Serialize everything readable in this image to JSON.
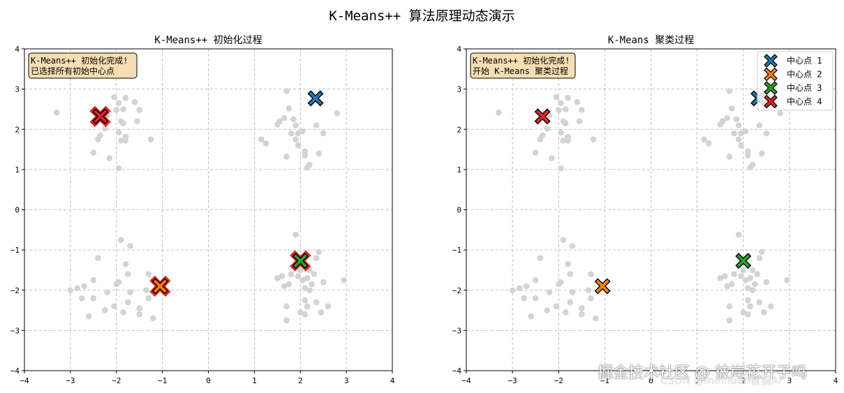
{
  "figure": {
    "suptitle": "K-Means++ 算法原理动态演示"
  },
  "watermark": {
    "text": "掘金技术社区 @ 彼岸花开子吗",
    "sub": "CSDN @minhuan智猫AI"
  },
  "colors": {
    "points": "#d3d3d3",
    "grid": "#b0b0b0",
    "annotation_bg": "#f5deb3",
    "outline_red": "#d62728"
  },
  "chart_data": [
    {
      "type": "scatter",
      "title": "K-Means++ 初始化过程",
      "xlim": [
        -4,
        4
      ],
      "ylim": [
        -4,
        4
      ],
      "xticks": [
        -4,
        -3,
        -2,
        -1,
        0,
        1,
        2,
        3,
        4
      ],
      "yticks": [
        -4,
        -3,
        -2,
        -1,
        0,
        1,
        2,
        3,
        4
      ],
      "grid": true,
      "annotation": [
        "K-Means++ 初始化完成!",
        "已选择所有初始中心点"
      ],
      "points": [
        [
          -3.3,
          2.42
        ],
        [
          -2.5,
          1.42
        ],
        [
          -2.4,
          1.75
        ],
        [
          -2.35,
          1.85
        ],
        [
          -2.25,
          2.02
        ],
        [
          -2.2,
          2.35
        ],
        [
          -2.15,
          1.28
        ],
        [
          -2.05,
          2.8
        ],
        [
          -2.0,
          2.48
        ],
        [
          -1.95,
          2.65
        ],
        [
          -1.95,
          1.92
        ],
        [
          -1.9,
          2.2
        ],
        [
          -1.9,
          1.72
        ],
        [
          -1.85,
          2.5
        ],
        [
          -1.85,
          2.15
        ],
        [
          -1.8,
          2.78
        ],
        [
          -1.8,
          1.82
        ],
        [
          -1.8,
          1.72
        ],
        [
          -1.6,
          2.68
        ],
        [
          -1.55,
          2.2
        ],
        [
          -1.5,
          2.48
        ],
        [
          -1.25,
          1.75
        ],
        [
          -1.95,
          1.03
        ],
        [
          1.7,
          2.95
        ],
        [
          1.75,
          2.52
        ],
        [
          1.65,
          2.28
        ],
        [
          1.5,
          2.12
        ],
        [
          1.55,
          2.2
        ],
        [
          1.9,
          2.1
        ],
        [
          1.85,
          2.25
        ],
        [
          1.95,
          1.9
        ],
        [
          1.9,
          1.75
        ],
        [
          2.05,
          1.95
        ],
        [
          1.8,
          1.9
        ],
        [
          1.95,
          1.6
        ],
        [
          2.1,
          1.45
        ],
        [
          2.1,
          1.35
        ],
        [
          2.15,
          1.05
        ],
        [
          2.2,
          1.12
        ],
        [
          1.15,
          1.75
        ],
        [
          1.25,
          1.65
        ],
        [
          1.7,
          1.32
        ],
        [
          2.4,
          1.4
        ],
        [
          2.5,
          1.9
        ],
        [
          2.35,
          2.1
        ],
        [
          2.8,
          2.4
        ],
        [
          -3.0,
          -2.0
        ],
        [
          -2.85,
          -1.95
        ],
        [
          -2.75,
          -2.2
        ],
        [
          -2.7,
          -1.9
        ],
        [
          -2.6,
          -2.65
        ],
        [
          -2.5,
          -1.75
        ],
        [
          -2.5,
          -2.2
        ],
        [
          -2.4,
          -1.2
        ],
        [
          -2.25,
          -2.5
        ],
        [
          -2.2,
          -2.05
        ],
        [
          -2.05,
          -2.4
        ],
        [
          -2.0,
          -1.85
        ],
        [
          -1.95,
          -1.8
        ],
        [
          -1.85,
          -2.55
        ],
        [
          -1.9,
          -0.75
        ],
        [
          -1.75,
          -2.3
        ],
        [
          -1.75,
          -1.6
        ],
        [
          -1.8,
          -1.35
        ],
        [
          -1.7,
          -0.9
        ],
        [
          -1.5,
          -2.45
        ],
        [
          -1.5,
          -2.6
        ],
        [
          -1.35,
          -2.0
        ],
        [
          -1.3,
          -1.6
        ],
        [
          -1.3,
          -2.2
        ],
        [
          -1.2,
          -2.7
        ],
        [
          -1.7,
          -2.05
        ],
        [
          1.9,
          -0.62
        ],
        [
          1.6,
          -1.65
        ],
        [
          1.5,
          -1.7
        ],
        [
          1.75,
          -1.85
        ],
        [
          1.65,
          -1.9
        ],
        [
          1.7,
          -2.4
        ],
        [
          1.7,
          -2.75
        ],
        [
          2.0,
          -1.5
        ],
        [
          2.05,
          -1.75
        ],
        [
          2.1,
          -1.95
        ],
        [
          2.15,
          -1.7
        ],
        [
          2.2,
          -1.5
        ],
        [
          2.25,
          -1.85
        ],
        [
          2.3,
          -1.6
        ],
        [
          2.35,
          -1.2
        ],
        [
          2.4,
          -1.05
        ],
        [
          2.5,
          -1.8
        ],
        [
          2.1,
          -2.25
        ],
        [
          2.15,
          -2.4
        ],
        [
          2.0,
          -2.55
        ],
        [
          2.1,
          -2.6
        ],
        [
          2.35,
          -2.3
        ],
        [
          2.45,
          -2.55
        ],
        [
          2.6,
          -2.4
        ],
        [
          2.95,
          -1.75
        ],
        [
          1.8,
          -1.6
        ],
        [
          1.95,
          -1.65
        ],
        [
          2.2,
          -2.0
        ]
      ],
      "centers": [
        {
          "x": 2.33,
          "y": 2.77,
          "color": "#1f77b4",
          "red_outline": false
        },
        {
          "x": -1.05,
          "y": -1.9,
          "color": "#ff7f0e",
          "red_outline": true
        },
        {
          "x": 2.0,
          "y": -1.27,
          "color": "#2ca02c",
          "red_outline": true
        },
        {
          "x": -2.35,
          "y": 2.32,
          "color": "#d62728",
          "red_outline": true
        }
      ]
    },
    {
      "type": "scatter",
      "title": "K-Means 聚类过程",
      "xlim": [
        -4,
        4
      ],
      "ylim": [
        -4,
        4
      ],
      "xticks": [
        -4,
        -3,
        -2,
        -1,
        0,
        1,
        2,
        3,
        4
      ],
      "yticks": [
        -4,
        -3,
        -2,
        -1,
        0,
        1,
        2,
        3,
        4
      ],
      "grid": true,
      "annotation": [
        "K-Means++ 初始化完成!",
        "开始 K-Means 聚类过程"
      ],
      "legend": {
        "placement": "top-right",
        "entries": [
          "中心点 1",
          "中心点 2",
          "中心点 3",
          "中心点 4"
        ]
      },
      "points_ref": 0,
      "centers": [
        {
          "x": 2.33,
          "y": 2.77,
          "color": "#1f77b4"
        },
        {
          "x": -1.05,
          "y": -1.9,
          "color": "#ff7f0e"
        },
        {
          "x": 2.0,
          "y": -1.27,
          "color": "#2ca02c"
        },
        {
          "x": -2.35,
          "y": 2.32,
          "color": "#d62728"
        }
      ]
    }
  ]
}
